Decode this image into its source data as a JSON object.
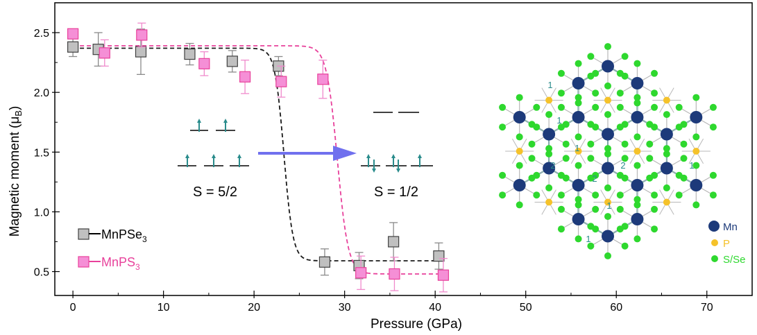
{
  "chart_data": {
    "type": "scatter",
    "xlabel": "Pressure (GPa)",
    "ylabel_main": "Magnetic moment (",
    "ylabel_symbol": "μ",
    "ylabel_sub": "B",
    "ylabel_close": ")",
    "xlim": [
      -2,
      75
    ],
    "ylim": [
      0.3,
      2.75
    ],
    "xticks": [
      0,
      10,
      20,
      30,
      40,
      50,
      60,
      70
    ],
    "yticks": [
      0.5,
      1.0,
      1.5,
      2.0,
      2.5
    ],
    "ytick_labels": [
      "0.5",
      "1.0",
      "1.5",
      "2.0",
      "2.5"
    ],
    "series": [
      {
        "name": "MnPSe",
        "subscript": "3",
        "color": "#404040",
        "fill": "#c0c0c0",
        "points": [
          {
            "x": 0.0,
            "y": 2.38,
            "err": 0.08
          },
          {
            "x": 2.8,
            "y": 2.36,
            "err": 0.14
          },
          {
            "x": 7.5,
            "y": 2.34,
            "err": 0.19
          },
          {
            "x": 12.9,
            "y": 2.32,
            "err": 0.09
          },
          {
            "x": 17.6,
            "y": 2.26,
            "err": 0.09
          },
          {
            "x": 22.7,
            "y": 2.22,
            "err": 0.08
          },
          {
            "x": 27.8,
            "y": 0.58,
            "err": 0.11
          },
          {
            "x": 31.6,
            "y": 0.55,
            "err": 0.11
          },
          {
            "x": 35.4,
            "y": 0.75,
            "err": 0.16
          },
          {
            "x": 40.4,
            "y": 0.63,
            "err": 0.11
          }
        ],
        "fit": {
          "high": 2.37,
          "low": 0.59,
          "center": 23.3,
          "width": 0.5,
          "xmin": 0,
          "xmax": 41
        }
      },
      {
        "name": "MnPS",
        "subscript": "3",
        "color": "#e8419b",
        "fill": "#f58fd6",
        "points": [
          {
            "x": 0.0,
            "y": 2.49,
            "err": 0.04
          },
          {
            "x": 3.5,
            "y": 2.33,
            "err": 0.11
          },
          {
            "x": 7.6,
            "y": 2.48,
            "err": 0.1
          },
          {
            "x": 14.5,
            "y": 2.24,
            "err": 0.1
          },
          {
            "x": 19.0,
            "y": 2.13,
            "err": 0.14
          },
          {
            "x": 23.0,
            "y": 2.09,
            "err": 0.13
          },
          {
            "x": 27.6,
            "y": 2.11,
            "err": 0.16
          },
          {
            "x": 31.8,
            "y": 0.49,
            "err": 0.14
          },
          {
            "x": 35.5,
            "y": 0.48,
            "err": 0.14
          },
          {
            "x": 40.9,
            "y": 0.47,
            "err": 0.14
          }
        ],
        "fit": {
          "high": 2.39,
          "low": 0.48,
          "center": 29.2,
          "width": 0.6,
          "xmin": 0,
          "xmax": 41
        }
      }
    ],
    "annotations": {
      "spin_high": "S = 5/2",
      "spin_low": "S = 1/2",
      "arrow_color": "#7070ee"
    },
    "lattice": {
      "legend": [
        {
          "label": "Mn",
          "color": "#1d3a7a"
        },
        {
          "label": "P",
          "color": "#f5c22a"
        },
        {
          "label": "S/Se",
          "color": "#2ed82e"
        }
      ],
      "bond_labels": [
        "1",
        "1",
        "1",
        "2",
        "2",
        "1",
        "2",
        "1",
        "1"
      ],
      "bond_color": "#2a8c8c"
    }
  }
}
